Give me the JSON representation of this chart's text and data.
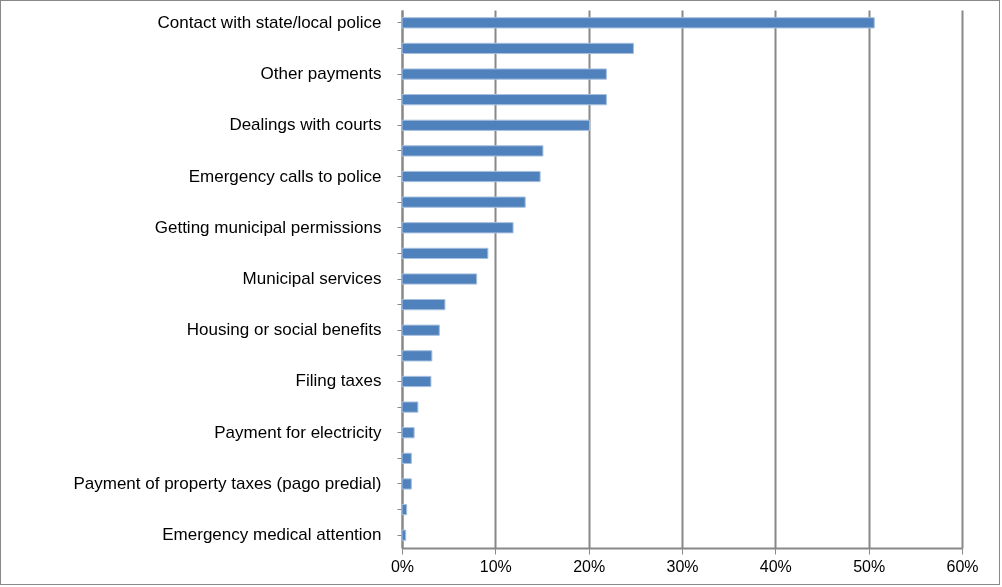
{
  "chart_data": {
    "type": "bar",
    "orientation": "horizontal",
    "categories": [
      "Contact with state/local police",
      null,
      "Other payments",
      null,
      "Dealings with courts",
      null,
      "Emergency calls to police",
      null,
      "Getting municipal permissions",
      null,
      "Municipal services",
      null,
      "Housing or social benefits",
      null,
      "Filing taxes",
      null,
      "Payment for electricity",
      null,
      "Payment of property taxes (pago predial)",
      null,
      "Emergency medical attention"
    ],
    "values": [
      50.6,
      24.8,
      21.9,
      21.9,
      20.1,
      15.1,
      14.8,
      13.2,
      11.9,
      9.2,
      8.0,
      4.6,
      4.0,
      3.2,
      3.1,
      1.7,
      1.3,
      1.0,
      1.0,
      0.5,
      0.4
    ],
    "color": "#4f81bd",
    "xlim": [
      0,
      60
    ],
    "xticks": [
      {
        "value": 0,
        "label": "0%"
      },
      {
        "value": 10,
        "label": "10%"
      },
      {
        "value": 20,
        "label": "20%"
      },
      {
        "value": 30,
        "label": "30%"
      },
      {
        "value": 40,
        "label": "40%"
      },
      {
        "value": 50,
        "label": "50%"
      },
      {
        "value": 60,
        "label": "60%"
      }
    ],
    "grid": "x"
  }
}
